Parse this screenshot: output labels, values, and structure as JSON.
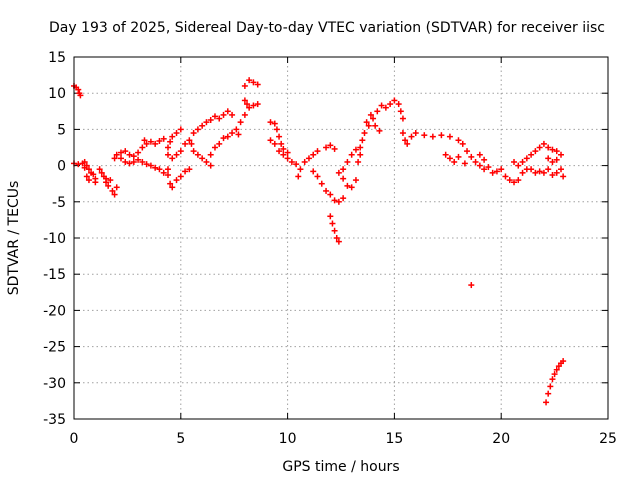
{
  "chart_data": {
    "type": "scatter",
    "title": "Day 193 of 2025, Sidereal Day-to-day VTEC variation (SDTVAR) for receiver iisc",
    "xlabel": "GPS time / hours",
    "ylabel": "SDTVAR / TECUs",
    "xlim": [
      0,
      25
    ],
    "ylim": [
      -35,
      15
    ],
    "x_ticks": [
      0,
      5,
      10,
      15,
      20,
      25
    ],
    "y_ticks": [
      15,
      10,
      5,
      0,
      -5,
      -10,
      -15,
      -20,
      -25,
      -30,
      -35
    ],
    "grid": true,
    "marker": "+",
    "series": [
      {
        "name": "SDTVAR",
        "color": "#ff0000",
        "points": [
          [
            0.0,
            11.0
          ],
          [
            0.1,
            10.8
          ],
          [
            0.2,
            10.5
          ],
          [
            0.25,
            10.0
          ],
          [
            0.3,
            9.7
          ],
          [
            0.0,
            0.3
          ],
          [
            0.2,
            0.2
          ],
          [
            0.4,
            0.3
          ],
          [
            0.5,
            -0.3
          ],
          [
            0.6,
            0.0
          ],
          [
            0.7,
            -0.5
          ],
          [
            0.8,
            -1.0
          ],
          [
            0.5,
            0.5
          ],
          [
            0.6,
            -1.5
          ],
          [
            0.7,
            -2.0
          ],
          [
            0.9,
            -1.2
          ],
          [
            1.0,
            -1.8
          ],
          [
            1.0,
            -2.3
          ],
          [
            1.2,
            -0.5
          ],
          [
            1.3,
            -1.0
          ],
          [
            1.4,
            -1.5
          ],
          [
            1.5,
            -1.8
          ],
          [
            1.5,
            -2.3
          ],
          [
            1.6,
            -2.8
          ],
          [
            1.7,
            -2.0
          ],
          [
            1.8,
            -3.5
          ],
          [
            1.9,
            -4.0
          ],
          [
            2.0,
            -3.0
          ],
          [
            1.9,
            1.0
          ],
          [
            2.0,
            1.5
          ],
          [
            2.2,
            1.0
          ],
          [
            2.4,
            0.5
          ],
          [
            2.2,
            1.8
          ],
          [
            2.4,
            2.0
          ],
          [
            2.6,
            1.5
          ],
          [
            2.8,
            1.3
          ],
          [
            3.0,
            1.8
          ],
          [
            3.2,
            2.5
          ],
          [
            3.3,
            3.5
          ],
          [
            3.4,
            3.0
          ],
          [
            3.6,
            3.3
          ],
          [
            3.8,
            3.0
          ],
          [
            4.0,
            3.4
          ],
          [
            4.2,
            3.7
          ],
          [
            2.6,
            0.3
          ],
          [
            2.8,
            0.5
          ],
          [
            3.0,
            0.8
          ],
          [
            3.2,
            0.5
          ],
          [
            3.4,
            0.2
          ],
          [
            3.6,
            0.0
          ],
          [
            3.8,
            -0.3
          ],
          [
            4.0,
            -0.5
          ],
          [
            4.2,
            -1.0
          ],
          [
            4.4,
            -1.3
          ],
          [
            4.4,
            1.5
          ],
          [
            4.4,
            2.5
          ],
          [
            4.5,
            3.3
          ],
          [
            4.6,
            4.0
          ],
          [
            4.8,
            4.5
          ],
          [
            5.0,
            5.0
          ],
          [
            4.4,
            -0.5
          ],
          [
            4.6,
            1.0
          ],
          [
            4.8,
            1.5
          ],
          [
            5.0,
            2.0
          ],
          [
            4.5,
            -2.5
          ],
          [
            4.6,
            -3.0
          ],
          [
            4.8,
            -2.0
          ],
          [
            5.0,
            -1.5
          ],
          [
            5.2,
            -0.8
          ],
          [
            5.4,
            -0.5
          ],
          [
            5.2,
            3.0
          ],
          [
            5.4,
            3.5
          ],
          [
            5.5,
            3.0
          ],
          [
            5.6,
            2.0
          ],
          [
            5.8,
            1.5
          ],
          [
            6.0,
            1.0
          ],
          [
            6.2,
            0.5
          ],
          [
            6.4,
            0.0
          ],
          [
            5.6,
            4.5
          ],
          [
            5.8,
            5.0
          ],
          [
            6.0,
            5.5
          ],
          [
            6.2,
            6.0
          ],
          [
            6.4,
            6.3
          ],
          [
            6.6,
            6.8
          ],
          [
            6.8,
            6.5
          ],
          [
            7.0,
            7.0
          ],
          [
            7.2,
            7.5
          ],
          [
            7.4,
            7.0
          ],
          [
            6.4,
            1.5
          ],
          [
            6.6,
            2.5
          ],
          [
            6.8,
            3.0
          ],
          [
            7.0,
            3.8
          ],
          [
            7.2,
            4.0
          ],
          [
            7.4,
            4.5
          ],
          [
            7.6,
            5.0
          ],
          [
            7.8,
            6.0
          ],
          [
            8.0,
            7.0
          ],
          [
            8.2,
            8.0
          ],
          [
            8.4,
            8.3
          ],
          [
            8.6,
            8.5
          ],
          [
            8.0,
            11.0
          ],
          [
            8.2,
            11.8
          ],
          [
            8.4,
            11.5
          ],
          [
            8.6,
            11.2
          ],
          [
            8.0,
            9.0
          ],
          [
            8.1,
            8.5
          ],
          [
            7.7,
            4.3
          ],
          [
            9.2,
            6.0
          ],
          [
            9.4,
            5.8
          ],
          [
            9.5,
            5.0
          ],
          [
            9.6,
            4.0
          ],
          [
            9.7,
            3.0
          ],
          [
            9.8,
            2.3
          ],
          [
            10.0,
            1.8
          ],
          [
            9.2,
            3.5
          ],
          [
            9.4,
            3.0
          ],
          [
            9.6,
            2.0
          ],
          [
            9.8,
            1.5
          ],
          [
            10.0,
            1.0
          ],
          [
            10.2,
            0.5
          ],
          [
            10.4,
            0.2
          ],
          [
            10.5,
            -1.5
          ],
          [
            10.6,
            -0.5
          ],
          [
            10.8,
            0.5
          ],
          [
            11.0,
            1.0
          ],
          [
            11.2,
            1.5
          ],
          [
            11.4,
            2.0
          ],
          [
            11.2,
            -0.8
          ],
          [
            11.4,
            -1.5
          ],
          [
            11.6,
            -2.5
          ],
          [
            11.8,
            -3.5
          ],
          [
            12.0,
            -4.0
          ],
          [
            12.2,
            -4.8
          ],
          [
            12.4,
            -5.0
          ],
          [
            12.6,
            -4.5
          ],
          [
            12.4,
            -1.0
          ],
          [
            12.6,
            -0.5
          ],
          [
            12.8,
            0.5
          ],
          [
            13.0,
            1.5
          ],
          [
            13.2,
            2.2
          ],
          [
            13.4,
            1.5
          ],
          [
            12.0,
            -7.0
          ],
          [
            12.1,
            -8.0
          ],
          [
            12.2,
            -9.0
          ],
          [
            12.3,
            -10.0
          ],
          [
            12.4,
            -10.5
          ],
          [
            11.8,
            2.5
          ],
          [
            12.0,
            2.8
          ],
          [
            12.2,
            2.3
          ],
          [
            12.6,
            -1.8
          ],
          [
            12.8,
            -2.8
          ],
          [
            13.0,
            -3.0
          ],
          [
            13.2,
            -2.0
          ],
          [
            13.3,
            0.5
          ],
          [
            13.4,
            2.5
          ],
          [
            13.5,
            3.5
          ],
          [
            13.6,
            4.5
          ],
          [
            13.8,
            5.5
          ],
          [
            14.0,
            6.5
          ],
          [
            14.2,
            7.5
          ],
          [
            14.4,
            8.3
          ],
          [
            14.6,
            8.0
          ],
          [
            14.8,
            8.5
          ],
          [
            15.0,
            9.0
          ],
          [
            15.2,
            8.5
          ],
          [
            15.3,
            7.5
          ],
          [
            15.4,
            6.5
          ],
          [
            13.7,
            6.0
          ],
          [
            13.9,
            7.0
          ],
          [
            14.1,
            5.5
          ],
          [
            14.3,
            4.8
          ],
          [
            15.4,
            4.5
          ],
          [
            15.5,
            3.5
          ],
          [
            15.6,
            3.0
          ],
          [
            15.8,
            4.0
          ],
          [
            16.0,
            4.5
          ],
          [
            16.4,
            4.2
          ],
          [
            16.8,
            4.0
          ],
          [
            17.2,
            4.2
          ],
          [
            17.6,
            4.0
          ],
          [
            18.0,
            3.5
          ],
          [
            18.2,
            3.0
          ],
          [
            18.4,
            2.0
          ],
          [
            18.6,
            1.2
          ],
          [
            18.8,
            0.5
          ],
          [
            19.0,
            0.0
          ],
          [
            19.2,
            -0.5
          ],
          [
            17.4,
            1.5
          ],
          [
            17.6,
            1.0
          ],
          [
            17.8,
            0.5
          ],
          [
            18.0,
            1.2
          ],
          [
            18.3,
            0.3
          ],
          [
            18.6,
            -16.5
          ],
          [
            19.0,
            1.5
          ],
          [
            19.2,
            0.8
          ],
          [
            19.4,
            -0.2
          ],
          [
            19.6,
            -1.0
          ],
          [
            19.8,
            -0.8
          ],
          [
            20.0,
            -0.5
          ],
          [
            20.2,
            -1.5
          ],
          [
            20.4,
            -2.0
          ],
          [
            20.6,
            -2.3
          ],
          [
            20.8,
            -2.0
          ],
          [
            21.0,
            -1.0
          ],
          [
            21.2,
            -0.5
          ],
          [
            20.6,
            0.5
          ],
          [
            20.8,
            0.0
          ],
          [
            21.0,
            0.5
          ],
          [
            21.2,
            1.0
          ],
          [
            21.4,
            1.5
          ],
          [
            21.6,
            2.0
          ],
          [
            21.8,
            2.5
          ],
          [
            22.0,
            3.0
          ],
          [
            22.2,
            2.5
          ],
          [
            22.4,
            2.2
          ],
          [
            22.6,
            2.0
          ],
          [
            22.8,
            1.5
          ],
          [
            21.4,
            -0.5
          ],
          [
            21.6,
            -1.0
          ],
          [
            21.8,
            -0.8
          ],
          [
            22.0,
            -1.0
          ],
          [
            22.2,
            -0.5
          ],
          [
            22.4,
            -1.3
          ],
          [
            22.6,
            -1.0
          ],
          [
            22.8,
            -0.5
          ],
          [
            22.9,
            -1.5
          ],
          [
            22.2,
            1.0
          ],
          [
            22.4,
            0.5
          ],
          [
            22.6,
            0.8
          ],
          [
            22.1,
            -32.7
          ],
          [
            22.2,
            -31.5
          ],
          [
            22.3,
            -30.5
          ],
          [
            22.4,
            -29.5
          ],
          [
            22.5,
            -28.8
          ],
          [
            22.6,
            -28.2
          ],
          [
            22.7,
            -27.7
          ],
          [
            22.8,
            -27.3
          ],
          [
            22.9,
            -27.0
          ]
        ]
      }
    ]
  }
}
